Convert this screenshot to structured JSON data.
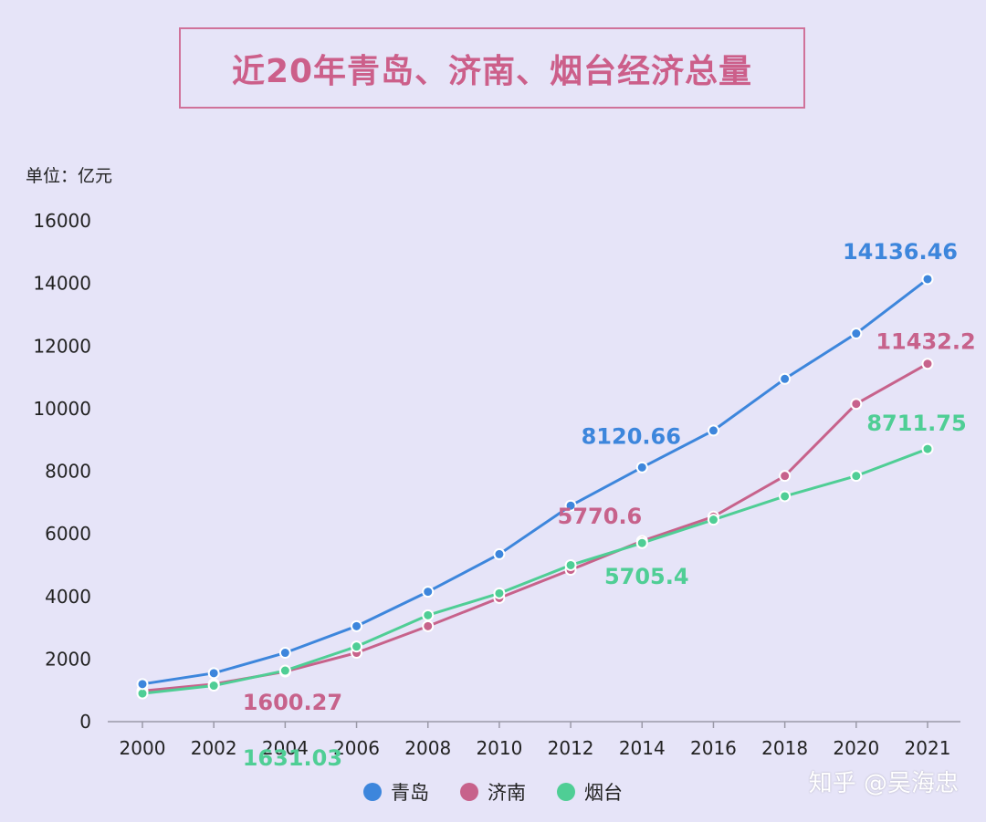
{
  "title": "近20年青岛、济南、烟台经济总量",
  "unit_label": "单位：亿元",
  "watermark": "知乎 @吴海忠",
  "colors": {
    "qingdao": "#3d86dc",
    "jinan": "#c7628b",
    "yantai": "#4fce95"
  },
  "chart_data": {
    "type": "line",
    "title": "近20年青岛、济南、烟台经济总量",
    "ylabel": "单位：亿元",
    "xlabel": "",
    "ylim": [
      0,
      16000
    ],
    "yticks": [
      0,
      2000,
      4000,
      6000,
      8000,
      10000,
      12000,
      14000,
      16000
    ],
    "categories": [
      "2000",
      "2002",
      "2004",
      "2006",
      "2008",
      "2010",
      "2012",
      "2014",
      "2016",
      "2018",
      "2020",
      "2021"
    ],
    "grid": false,
    "legend": "bottom",
    "series": [
      {
        "name": "青岛",
        "color": "#3d86dc",
        "values": [
          1200,
          1550,
          2200,
          3050,
          4150,
          5350,
          6900,
          8120.66,
          9300,
          10950,
          12400,
          14136.46
        ]
      },
      {
        "name": "济南",
        "color": "#c7628b",
        "values": [
          980,
          1200,
          1600.27,
          2200,
          3050,
          3950,
          4850,
          5770.6,
          6550,
          7850,
          10150,
          11432.2
        ]
      },
      {
        "name": "烟台",
        "color": "#4fce95",
        "values": [
          900,
          1150,
          1631.03,
          2400,
          3400,
          4100,
          5000,
          5705.4,
          6450,
          7200,
          7850,
          8711.75
        ]
      }
    ],
    "data_labels": [
      {
        "series": "青岛",
        "category": "2014",
        "text": "8120.66"
      },
      {
        "series": "青岛",
        "category": "2021",
        "text": "14136.46"
      },
      {
        "series": "济南",
        "category": "2004",
        "text": "1600.27"
      },
      {
        "series": "济南",
        "category": "2014",
        "text": "5770.6"
      },
      {
        "series": "济南",
        "category": "2021",
        "text": "11432.2"
      },
      {
        "series": "烟台",
        "category": "2004",
        "text": "1631.03"
      },
      {
        "series": "烟台",
        "category": "2014",
        "text": "5705.4"
      },
      {
        "series": "烟台",
        "category": "2021",
        "text": "8711.75"
      }
    ]
  }
}
